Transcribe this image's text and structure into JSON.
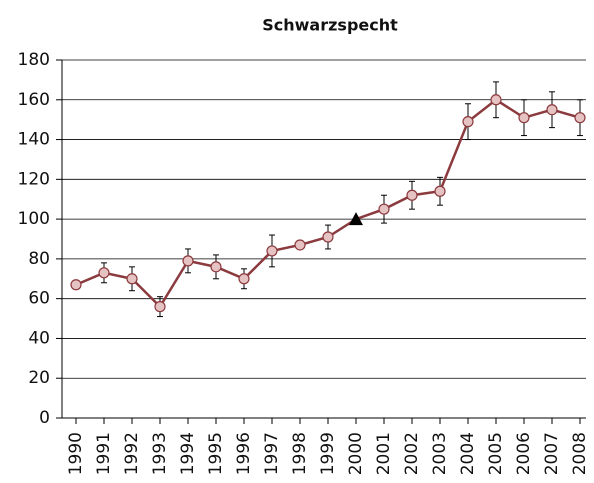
{
  "chart_data": {
    "type": "line",
    "title": "Schwarzspecht",
    "categories": [
      "1990",
      "1991",
      "1992",
      "1993",
      "1994",
      "1995",
      "1996",
      "1997",
      "1998",
      "1999",
      "2000",
      "2001",
      "2002",
      "2003",
      "2004",
      "2005",
      "2006",
      "2007",
      "2008"
    ],
    "series": [
      {
        "color": "#8b3a3e",
        "marker_color": "#e6c3c3",
        "values": [
          67,
          73,
          70,
          56,
          79,
          76,
          70,
          84,
          87,
          91,
          100,
          105,
          112,
          114,
          149,
          160,
          151,
          155,
          151
        ],
        "errors": [
          null,
          5,
          6,
          5,
          6,
          6,
          5,
          8,
          null,
          6,
          null,
          7,
          7,
          7,
          9,
          9,
          9,
          9,
          9
        ]
      }
    ],
    "reference": "2000",
    "ylim": [
      0,
      180
    ],
    "yticks": [
      0,
      20,
      40,
      60,
      80,
      100,
      120,
      140,
      160,
      180
    ],
    "grid": true
  }
}
